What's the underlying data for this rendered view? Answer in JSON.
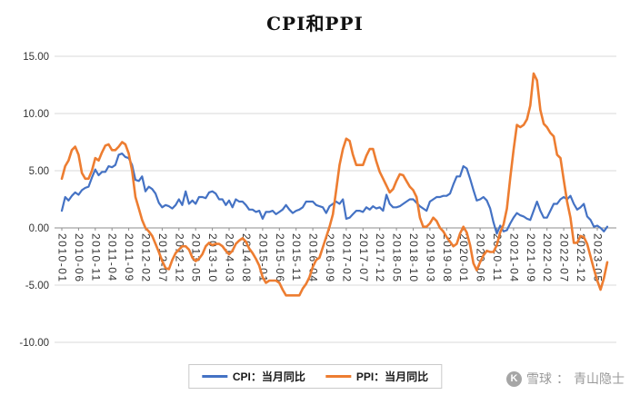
{
  "watermark": {
    "brand": "雪球",
    "separator": "：",
    "user": "青山隐士",
    "icon": "xueqiu-logo-icon"
  },
  "chart_data": {
    "type": "line",
    "title": "CPI和PPI",
    "grid": true,
    "legend_position": "bottom",
    "ylim": [
      -10,
      15
    ],
    "y_tick_values": [
      15,
      10,
      5,
      0,
      -5,
      -10
    ],
    "y_tick_labels": [
      "15.00",
      "10.00",
      "5.00",
      "0.00",
      "-5.00",
      "-10.00"
    ],
    "x_tick_interval": 5,
    "x_tick_labels": [
      "2010-01",
      "2010-06",
      "2010-11",
      "2011-04",
      "2011-09",
      "2012-02",
      "2012-07",
      "2012-12",
      "2013-05",
      "2013-10",
      "2014-03",
      "2014-08",
      "2015-01",
      "2015-06",
      "2015-11",
      "2016-04",
      "2016-09",
      "2017-02",
      "2017-07",
      "2017-12",
      "2018-05",
      "2018-10",
      "2019-03",
      "2019-08",
      "2020-01",
      "2020-06",
      "2020-11",
      "2021-04",
      "2021-09",
      "2022-02",
      "2022-07",
      "2022-12",
      "2023-05"
    ],
    "x_start": "2010-01",
    "x_freq": "monthly",
    "grid_color": "#d9d9d9",
    "axis_color": "#8c8c8c",
    "text_color": "#333333",
    "series": [
      {
        "key": "cpi",
        "name": "CPI：当月同比",
        "color": "#4472C4",
        "values": [
          1.5,
          2.7,
          2.4,
          2.8,
          3.1,
          2.9,
          3.3,
          3.5,
          3.6,
          4.4,
          5.1,
          4.6,
          4.9,
          4.9,
          5.4,
          5.3,
          5.5,
          6.4,
          6.5,
          6.2,
          6.1,
          5.5,
          4.2,
          4.1,
          4.5,
          3.2,
          3.6,
          3.4,
          3.0,
          2.2,
          1.8,
          2.0,
          1.9,
          1.7,
          2.0,
          2.5,
          2.0,
          3.2,
          2.1,
          2.4,
          2.1,
          2.7,
          2.7,
          2.6,
          3.1,
          3.2,
          3.0,
          2.5,
          2.5,
          2.0,
          2.4,
          1.8,
          2.5,
          2.3,
          2.3,
          2.0,
          1.6,
          1.6,
          1.4,
          1.5,
          0.8,
          1.4,
          1.4,
          1.5,
          1.2,
          1.4,
          1.6,
          2.0,
          1.6,
          1.3,
          1.5,
          1.6,
          1.8,
          2.3,
          2.3,
          2.3,
          2.0,
          1.9,
          1.8,
          1.3,
          1.9,
          2.1,
          2.3,
          2.1,
          2.5,
          0.8,
          0.9,
          1.2,
          1.5,
          1.5,
          1.4,
          1.8,
          1.6,
          1.9,
          1.7,
          1.8,
          1.5,
          2.9,
          2.1,
          1.8,
          1.8,
          1.9,
          2.1,
          2.3,
          2.5,
          2.5,
          2.2,
          1.9,
          1.7,
          1.5,
          2.3,
          2.5,
          2.7,
          2.7,
          2.8,
          2.8,
          3.0,
          3.8,
          4.5,
          4.5,
          5.4,
          5.2,
          4.3,
          3.3,
          2.4,
          2.5,
          2.7,
          2.4,
          1.7,
          0.5,
          -0.5,
          0.2,
          -0.3,
          -0.2,
          0.4,
          0.9,
          1.3,
          1.1,
          1.0,
          0.8,
          0.7,
          1.5,
          2.3,
          1.5,
          0.9,
          0.9,
          1.5,
          2.1,
          2.1,
          2.5,
          2.7,
          2.5,
          2.8,
          2.1,
          1.6,
          1.8,
          2.1,
          1.0,
          0.7,
          0.1,
          0.2,
          0.0,
          -0.3,
          0.1
        ]
      },
      {
        "key": "ppi",
        "name": "PPI：当月同比",
        "color": "#ED7D31",
        "values": [
          4.3,
          5.4,
          5.9,
          6.8,
          7.1,
          6.4,
          4.8,
          4.3,
          4.3,
          5.0,
          6.1,
          5.9,
          6.6,
          7.2,
          7.3,
          6.8,
          6.8,
          7.1,
          7.5,
          7.3,
          6.5,
          5.0,
          2.7,
          1.7,
          0.7,
          0.0,
          -0.3,
          -0.7,
          -1.4,
          -2.1,
          -2.9,
          -3.5,
          -3.6,
          -2.8,
          -2.2,
          -1.9,
          -1.6,
          -1.6,
          -1.9,
          -2.6,
          -2.9,
          -2.7,
          -2.3,
          -1.6,
          -1.3,
          -1.5,
          -1.4,
          -1.4,
          -1.6,
          -2.0,
          -2.3,
          -2.0,
          -1.4,
          -1.1,
          -0.9,
          -1.2,
          -1.8,
          -2.2,
          -2.7,
          -3.3,
          -4.3,
          -4.8,
          -4.6,
          -4.6,
          -4.6,
          -4.8,
          -5.4,
          -5.9,
          -5.9,
          -5.9,
          -5.9,
          -5.9,
          -5.3,
          -4.9,
          -4.3,
          -3.4,
          -2.8,
          -2.6,
          -1.7,
          -0.8,
          0.1,
          1.2,
          3.3,
          5.5,
          6.9,
          7.8,
          7.6,
          6.4,
          5.5,
          5.5,
          5.5,
          6.3,
          6.9,
          6.9,
          5.8,
          4.9,
          4.3,
          3.7,
          3.1,
          3.4,
          4.1,
          4.7,
          4.6,
          4.1,
          3.6,
          3.3,
          2.7,
          0.9,
          0.1,
          0.1,
          0.4,
          0.9,
          0.6,
          0.0,
          -0.3,
          -0.8,
          -1.2,
          -1.6,
          -1.4,
          -0.5,
          0.1,
          -0.4,
          -1.5,
          -3.1,
          -3.7,
          -3.0,
          -2.4,
          -2.0,
          -2.1,
          -2.1,
          -1.5,
          -0.4,
          0.3,
          1.7,
          4.4,
          6.8,
          9.0,
          8.8,
          9.0,
          9.5,
          10.7,
          13.5,
          12.9,
          10.3,
          9.1,
          8.8,
          8.3,
          8.0,
          6.4,
          6.1,
          4.2,
          2.3,
          0.9,
          -1.3,
          -1.3,
          -0.7,
          -0.8,
          -1.4,
          -2.5,
          -3.6,
          -4.6,
          -5.4,
          -4.4,
          -3.0
        ]
      }
    ]
  }
}
